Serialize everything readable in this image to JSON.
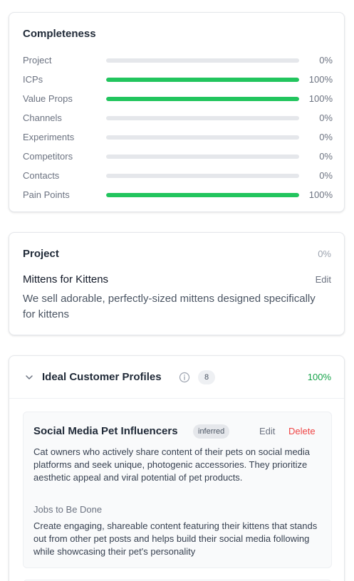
{
  "completeness": {
    "title": "Completeness",
    "fill_color": "#22c55e",
    "track_color": "#e5e7eb",
    "rows": [
      {
        "label": "Project",
        "pct_label": "0%",
        "value": 0
      },
      {
        "label": "ICPs",
        "pct_label": "100%",
        "value": 100
      },
      {
        "label": "Value Props",
        "pct_label": "100%",
        "value": 100
      },
      {
        "label": "Channels",
        "pct_label": "0%",
        "value": 0
      },
      {
        "label": "Experiments",
        "pct_label": "0%",
        "value": 0
      },
      {
        "label": "Competitors",
        "pct_label": "0%",
        "value": 0
      },
      {
        "label": "Contacts",
        "pct_label": "0%",
        "value": 0
      },
      {
        "label": "Pain Points",
        "pct_label": "100%",
        "value": 100
      }
    ]
  },
  "project": {
    "title": "Project",
    "pct_label": "0%",
    "name": "Mittens for Kittens",
    "edit_label": "Edit",
    "description": "We sell adorable, perfectly-sized mittens designed specifically for kittens"
  },
  "icp": {
    "title": "Ideal Customer Profiles",
    "count": "8",
    "pct_label": "100%",
    "pct_color": "#16a34a",
    "items": [
      {
        "name": "Social Media Pet Influencers",
        "badge": "inferred",
        "edit_label": "Edit",
        "delete_label": "Delete",
        "description": "Cat owners who actively share content of their pets on social media platforms and seek unique, photogenic accessories. They prioritize aesthetic appeal and viral potential of pet products.",
        "jobs_label": "Jobs to Be Done",
        "jobs": "Create engaging, shareable content featuring their kittens that stands out from other pet posts and helps build their social media following while showcasing their pet's personality"
      }
    ]
  }
}
